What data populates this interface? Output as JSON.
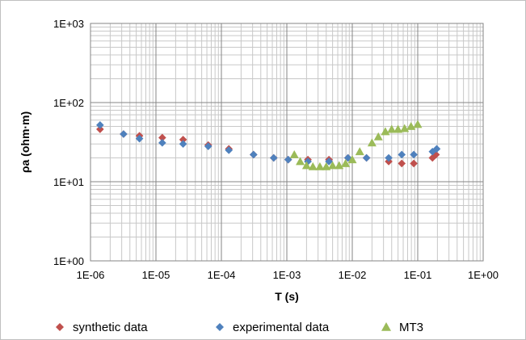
{
  "chart_data": {
    "type": "scatter",
    "x_scale": "log",
    "y_scale": "log",
    "xlabel": "T (s)",
    "ylabel": "ρa (ohm·m)",
    "xlim": [
      1e-06,
      1
    ],
    "ylim": [
      1,
      1000
    ],
    "x_tick_labels": [
      "1E-06",
      "1E-05",
      "1E-04",
      "1E-03",
      "1E-02",
      "1E-01",
      "1E+00"
    ],
    "y_tick_labels": [
      "1E+00",
      "1E+01",
      "1E+02",
      "1E+03"
    ],
    "grid": true,
    "legend_position": "bottom",
    "series": [
      {
        "name": "synthetic data",
        "marker": "diamond",
        "color": "#c0504d",
        "points": [
          [
            1.4e-06,
            46
          ],
          [
            3.2e-06,
            40
          ],
          [
            5.6e-06,
            38
          ],
          [
            1.25e-05,
            36
          ],
          [
            2.6e-05,
            34
          ],
          [
            6.3e-05,
            29
          ],
          [
            0.00013,
            26
          ],
          [
            0.00031,
            22
          ],
          [
            0.00063,
            20
          ],
          [
            0.00105,
            19
          ],
          [
            0.0021,
            19
          ],
          [
            0.0044,
            19
          ],
          [
            0.0086,
            20
          ],
          [
            0.0165,
            20
          ],
          [
            0.036,
            18
          ],
          [
            0.057,
            17
          ],
          [
            0.087,
            17
          ],
          [
            0.168,
            20
          ],
          [
            0.19,
            22
          ]
        ]
      },
      {
        "name": "experimental data",
        "marker": "diamond",
        "color": "#4f81bd",
        "points": [
          [
            1.4e-06,
            52
          ],
          [
            3.2e-06,
            40
          ],
          [
            5.6e-06,
            35
          ],
          [
            1.25e-05,
            31
          ],
          [
            2.6e-05,
            30
          ],
          [
            6.3e-05,
            28
          ],
          [
            0.00013,
            25
          ],
          [
            0.00031,
            22
          ],
          [
            0.00063,
            20
          ],
          [
            0.00105,
            19
          ],
          [
            0.0021,
            18
          ],
          [
            0.0044,
            18
          ],
          [
            0.0086,
            20
          ],
          [
            0.0165,
            20
          ],
          [
            0.036,
            20
          ],
          [
            0.057,
            22
          ],
          [
            0.087,
            22
          ],
          [
            0.168,
            24
          ],
          [
            0.195,
            26
          ]
        ]
      },
      {
        "name": "MT3",
        "marker": "triangle",
        "color": "#9bbb59",
        "points": [
          [
            0.0013,
            22
          ],
          [
            0.0016,
            18
          ],
          [
            0.002,
            16
          ],
          [
            0.0025,
            15.5
          ],
          [
            0.0032,
            15.5
          ],
          [
            0.004,
            15.5
          ],
          [
            0.005,
            16
          ],
          [
            0.0063,
            16
          ],
          [
            0.0079,
            17
          ],
          [
            0.01,
            19
          ],
          [
            0.013,
            24
          ],
          [
            0.02,
            31
          ],
          [
            0.025,
            37
          ],
          [
            0.032,
            43
          ],
          [
            0.04,
            46
          ],
          [
            0.05,
            46
          ],
          [
            0.063,
            47
          ],
          [
            0.079,
            50
          ],
          [
            0.1,
            53
          ]
        ]
      }
    ]
  }
}
